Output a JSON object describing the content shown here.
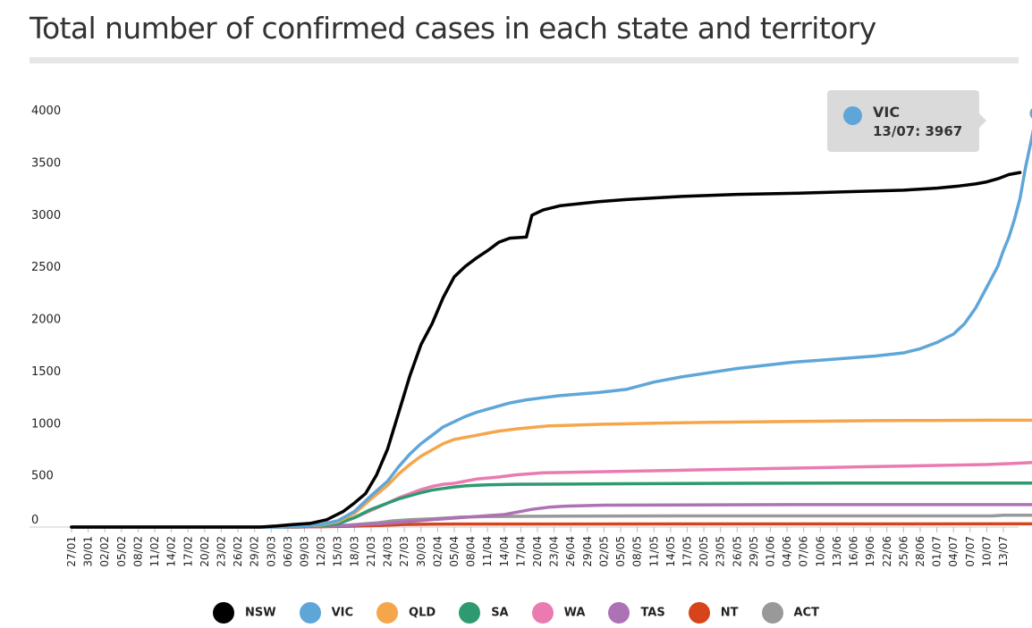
{
  "chart_data": {
    "type": "line",
    "title": "Total number of confirmed cases in each state and territory",
    "xlabel": "",
    "ylabel": "",
    "ylim": [
      0,
      4000
    ],
    "yticks": [
      0,
      500,
      1000,
      1500,
      2000,
      2500,
      3000,
      3500,
      4000
    ],
    "x_start": "2020-01-27",
    "x_end": "2020-07-13",
    "x_tick_labels": [
      "27/01",
      "30/01",
      "02/02",
      "05/02",
      "08/02",
      "11/02",
      "14/02",
      "17/02",
      "20/02",
      "23/02",
      "26/02",
      "29/02",
      "03/03",
      "06/03",
      "09/03",
      "12/03",
      "15/03",
      "18/03",
      "21/03",
      "24/03",
      "27/03",
      "30/03",
      "02/04",
      "05/04",
      "08/04",
      "11/04",
      "14/04",
      "17/04",
      "20/04",
      "23/04",
      "26/04",
      "29/04",
      "02/05",
      "05/05",
      "08/05",
      "11/05",
      "14/05",
      "17/05",
      "20/05",
      "23/05",
      "26/05",
      "29/05",
      "01/06",
      "04/06",
      "07/06",
      "10/06",
      "13/06",
      "16/06",
      "19/06",
      "22/06",
      "25/06",
      "28/06",
      "01/07",
      "04/07",
      "07/07",
      "10/07",
      "13/07"
    ],
    "series": [
      {
        "name": "NSW",
        "color": "#000000",
        "points": [
          [
            0,
            0
          ],
          [
            34,
            0
          ],
          [
            37,
            10
          ],
          [
            40,
            25
          ],
          [
            43,
            35
          ],
          [
            46,
            70
          ],
          [
            49,
            150
          ],
          [
            51,
            230
          ],
          [
            53,
            320
          ],
          [
            55,
            500
          ],
          [
            57,
            750
          ],
          [
            59,
            1100
          ],
          [
            61,
            1450
          ],
          [
            63,
            1750
          ],
          [
            65,
            1950
          ],
          [
            67,
            2200
          ],
          [
            69,
            2400
          ],
          [
            71,
            2500
          ],
          [
            73,
            2580
          ],
          [
            75,
            2650
          ],
          [
            77,
            2730
          ],
          [
            79,
            2770
          ],
          [
            82,
            2780
          ],
          [
            83,
            2990
          ],
          [
            85,
            3040
          ],
          [
            88,
            3080
          ],
          [
            95,
            3120
          ],
          [
            100,
            3140
          ],
          [
            110,
            3170
          ],
          [
            120,
            3190
          ],
          [
            130,
            3200
          ],
          [
            140,
            3215
          ],
          [
            150,
            3230
          ],
          [
            156,
            3250
          ],
          [
            160,
            3270
          ],
          [
            163,
            3290
          ],
          [
            165,
            3310
          ],
          [
            167,
            3340
          ],
          [
            169,
            3380
          ],
          [
            171,
            3400
          ]
        ]
      },
      {
        "name": "VIC",
        "color": "#5fa6d8",
        "points": [
          [
            0,
            0
          ],
          [
            38,
            0
          ],
          [
            42,
            10
          ],
          [
            45,
            25
          ],
          [
            48,
            60
          ],
          [
            51,
            150
          ],
          [
            54,
            300
          ],
          [
            57,
            440
          ],
          [
            59,
            580
          ],
          [
            61,
            700
          ],
          [
            63,
            800
          ],
          [
            65,
            880
          ],
          [
            67,
            960
          ],
          [
            69,
            1010
          ],
          [
            71,
            1060
          ],
          [
            73,
            1100
          ],
          [
            75,
            1130
          ],
          [
            77,
            1160
          ],
          [
            79,
            1190
          ],
          [
            82,
            1220
          ],
          [
            85,
            1240
          ],
          [
            88,
            1260
          ],
          [
            95,
            1290
          ],
          [
            100,
            1320
          ],
          [
            105,
            1390
          ],
          [
            110,
            1440
          ],
          [
            115,
            1480
          ],
          [
            120,
            1520
          ],
          [
            125,
            1550
          ],
          [
            130,
            1580
          ],
          [
            135,
            1600
          ],
          [
            140,
            1620
          ],
          [
            145,
            1640
          ],
          [
            150,
            1670
          ],
          [
            153,
            1710
          ],
          [
            156,
            1770
          ],
          [
            159,
            1850
          ],
          [
            161,
            1950
          ],
          [
            163,
            2100
          ],
          [
            165,
            2300
          ],
          [
            166,
            2400
          ],
          [
            167,
            2500
          ],
          [
            168,
            2650
          ],
          [
            169,
            2780
          ],
          [
            170,
            2950
          ],
          [
            171,
            3150
          ],
          [
            172,
            3450
          ],
          [
            173,
            3700
          ],
          [
            174,
            3967
          ]
        ]
      },
      {
        "name": "QLD",
        "color": "#f5a64b",
        "points": [
          [
            0,
            0
          ],
          [
            38,
            0
          ],
          [
            42,
            10
          ],
          [
            45,
            20
          ],
          [
            48,
            50
          ],
          [
            51,
            130
          ],
          [
            54,
            270
          ],
          [
            57,
            400
          ],
          [
            59,
            510
          ],
          [
            61,
            600
          ],
          [
            63,
            680
          ],
          [
            65,
            740
          ],
          [
            67,
            800
          ],
          [
            69,
            840
          ],
          [
            71,
            860
          ],
          [
            73,
            880
          ],
          [
            75,
            900
          ],
          [
            77,
            920
          ],
          [
            80,
            940
          ],
          [
            83,
            955
          ],
          [
            86,
            970
          ],
          [
            95,
            985
          ],
          [
            105,
            995
          ],
          [
            115,
            1005
          ],
          [
            125,
            1010
          ],
          [
            135,
            1015
          ],
          [
            145,
            1020
          ],
          [
            155,
            1022
          ],
          [
            165,
            1024
          ],
          [
            174,
            1024
          ]
        ]
      },
      {
        "name": "SA",
        "color": "#2e9a6f",
        "points": [
          [
            0,
            0
          ],
          [
            38,
            0
          ],
          [
            42,
            5
          ],
          [
            45,
            10
          ],
          [
            48,
            30
          ],
          [
            51,
            90
          ],
          [
            54,
            170
          ],
          [
            57,
            230
          ],
          [
            59,
            270
          ],
          [
            61,
            300
          ],
          [
            63,
            330
          ],
          [
            65,
            355
          ],
          [
            67,
            370
          ],
          [
            69,
            385
          ],
          [
            71,
            395
          ],
          [
            73,
            400
          ],
          [
            75,
            405
          ],
          [
            80,
            410
          ],
          [
            90,
            412
          ],
          [
            100,
            415
          ],
          [
            120,
            420
          ],
          [
            140,
            422
          ],
          [
            160,
            422
          ],
          [
            174,
            422
          ]
        ]
      },
      {
        "name": "WA",
        "color": "#ea7bb1",
        "points": [
          [
            0,
            0
          ],
          [
            38,
            0
          ],
          [
            42,
            5
          ],
          [
            45,
            15
          ],
          [
            48,
            40
          ],
          [
            51,
            90
          ],
          [
            54,
            160
          ],
          [
            57,
            230
          ],
          [
            59,
            280
          ],
          [
            61,
            320
          ],
          [
            63,
            360
          ],
          [
            65,
            390
          ],
          [
            67,
            410
          ],
          [
            69,
            420
          ],
          [
            71,
            440
          ],
          [
            73,
            460
          ],
          [
            75,
            470
          ],
          [
            77,
            480
          ],
          [
            80,
            500
          ],
          [
            85,
            520
          ],
          [
            95,
            530
          ],
          [
            105,
            540
          ],
          [
            115,
            550
          ],
          [
            125,
            560
          ],
          [
            135,
            570
          ],
          [
            145,
            580
          ],
          [
            155,
            590
          ],
          [
            165,
            600
          ],
          [
            170,
            610
          ],
          [
            174,
            621
          ]
        ]
      },
      {
        "name": "TAS",
        "color": "#ad72b5",
        "points": [
          [
            0,
            0
          ],
          [
            40,
            0
          ],
          [
            45,
            5
          ],
          [
            50,
            15
          ],
          [
            55,
            30
          ],
          [
            60,
            50
          ],
          [
            65,
            70
          ],
          [
            70,
            90
          ],
          [
            75,
            110
          ],
          [
            78,
            120
          ],
          [
            80,
            140
          ],
          [
            83,
            170
          ],
          [
            86,
            190
          ],
          [
            89,
            200
          ],
          [
            92,
            205
          ],
          [
            96,
            210
          ],
          [
            110,
            212
          ],
          [
            130,
            215
          ],
          [
            174,
            215
          ]
        ]
      },
      {
        "name": "NT",
        "color": "#d7441b",
        "points": [
          [
            0,
            0
          ],
          [
            40,
            0
          ],
          [
            45,
            3
          ],
          [
            50,
            8
          ],
          [
            55,
            15
          ],
          [
            60,
            25
          ],
          [
            65,
            28
          ],
          [
            75,
            29
          ],
          [
            174,
            31
          ]
        ]
      },
      {
        "name": "ACT",
        "color": "#999999",
        "points": [
          [
            0,
            0
          ],
          [
            40,
            0
          ],
          [
            45,
            5
          ],
          [
            50,
            20
          ],
          [
            55,
            40
          ],
          [
            58,
            60
          ],
          [
            61,
            70
          ],
          [
            65,
            80
          ],
          [
            70,
            95
          ],
          [
            75,
            100
          ],
          [
            80,
            103
          ],
          [
            90,
            105
          ],
          [
            100,
            106
          ],
          [
            110,
            107
          ],
          [
            130,
            107
          ],
          [
            160,
            107
          ],
          [
            166,
            107
          ],
          [
            168,
            113
          ],
          [
            174,
            113
          ]
        ]
      }
    ],
    "tooltip": {
      "series": "VIC",
      "label": "13/07: 3967",
      "value": 3967
    }
  }
}
